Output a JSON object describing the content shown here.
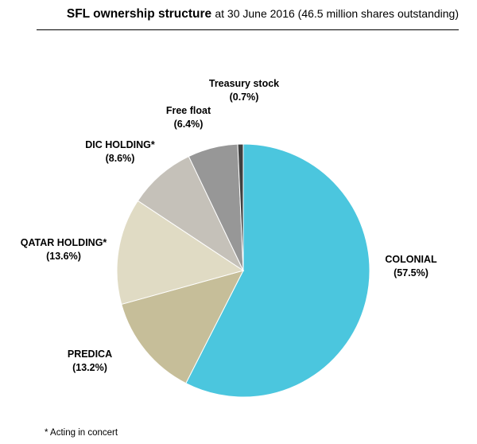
{
  "title": {
    "main": "SFL ownership structure",
    "sub": "at 30 June 2016 (46.5 million shares outstanding)"
  },
  "chart_data": {
    "type": "pie",
    "start": "12 o'clock",
    "direction": "clockwise",
    "slices": [
      {
        "name": "COLONIAL",
        "value_label": "(57.5%)",
        "value": 57.5,
        "color": "#4BC6DE"
      },
      {
        "name": "PREDICA",
        "value_label": "(13.2%)",
        "value": 13.2,
        "color": "#C6BE99"
      },
      {
        "name": "QATAR HOLDING*",
        "value_label": "(13.6%)",
        "value": 13.6,
        "color": "#E0DBC4"
      },
      {
        "name": "DIC HOLDING*",
        "value_label": "(8.6%)",
        "value": 8.6,
        "color": "#C5C1B9"
      },
      {
        "name": "Free float",
        "value_label": "(6.4%)",
        "value": 6.4,
        "color": "#979797"
      },
      {
        "name": "Treasury stock",
        "value_label": "(0.7%)",
        "value": 0.7,
        "color": "#404040"
      }
    ]
  },
  "footnote": "* Acting in concert"
}
